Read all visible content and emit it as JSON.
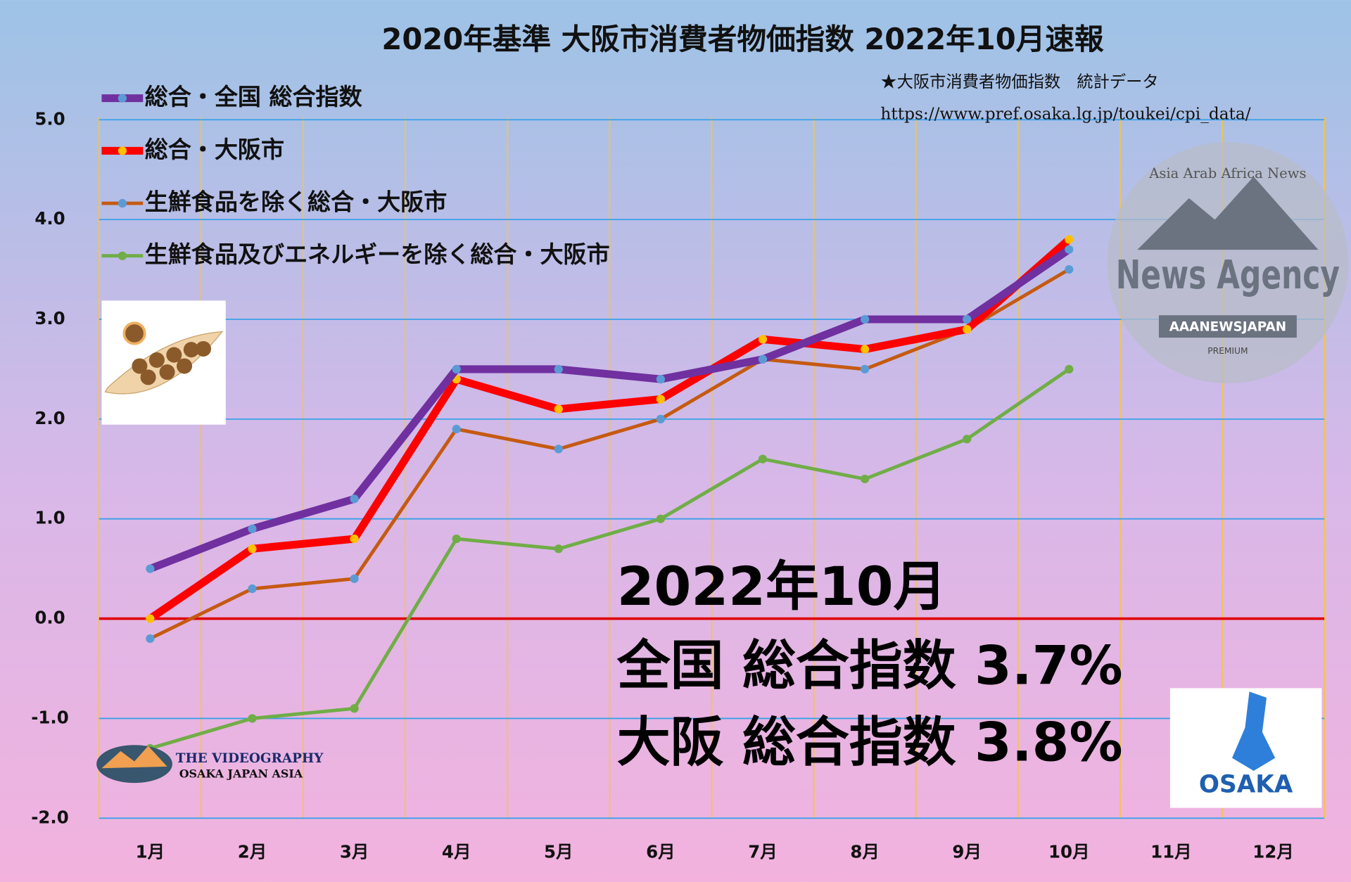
{
  "chart_data": {
    "type": "line",
    "title": "2020年基準 大阪市消費者物価指数 2022年10月速報",
    "source_lines": [
      "★大阪市消費者物価指数　統計データ",
      "https://www.pref.osaka.lg.jp/toukei/cpi_data/"
    ],
    "categories": [
      "1月",
      "2月",
      "3月",
      "4月",
      "5月",
      "6月",
      "7月",
      "8月",
      "9月",
      "10月",
      "11月",
      "12月"
    ],
    "series": [
      {
        "name": "総合・全国 総合指数",
        "color": "#7030a0",
        "marker_color": "#5b9bd5",
        "values": [
          0.5,
          0.9,
          1.2,
          2.5,
          2.5,
          2.4,
          2.6,
          3.0,
          3.0,
          3.7,
          null,
          null
        ]
      },
      {
        "name": "総合・大阪市",
        "color": "#ff0000",
        "marker_color": "#ffc000",
        "values": [
          0.0,
          0.7,
          0.8,
          2.4,
          2.1,
          2.2,
          2.8,
          2.7,
          2.9,
          3.8,
          null,
          null
        ]
      },
      {
        "name": "生鮮食品を除く総合・大阪市",
        "color": "#c55a11",
        "marker_color": "#5b9bd5",
        "values": [
          -0.2,
          0.3,
          0.4,
          1.9,
          1.7,
          2.0,
          2.6,
          2.5,
          2.9,
          3.5,
          null,
          null
        ]
      },
      {
        "name": "生鮮食品及びエネルギーを除く総合・大阪市",
        "color": "#70ad47",
        "marker_color": "#70ad47",
        "values": [
          -1.3,
          -1.0,
          -0.9,
          0.8,
          0.7,
          1.0,
          1.6,
          1.4,
          1.8,
          2.5,
          null,
          null
        ]
      }
    ],
    "ylim": [
      -2,
      5
    ],
    "yticks": [
      {
        "value": -2,
        "label": "-2.0"
      },
      {
        "value": -1,
        "label": "-1.0"
      },
      {
        "value": 0,
        "label": "0.0"
      },
      {
        "value": 1,
        "label": "1.0"
      },
      {
        "value": 2,
        "label": "2.0"
      },
      {
        "value": 3,
        "label": "3.0"
      },
      {
        "value": 4,
        "label": "4.0"
      },
      {
        "value": 5,
        "label": "5.0"
      }
    ],
    "grid": true,
    "zero_line_color": "#e00000",
    "annotations": [
      "2022年10月",
      "全国 総合指数 3.7%",
      "大阪 総合指数 3.8%"
    ],
    "logos": {
      "videography": [
        "THE VIDEOGRAPHY",
        "OSAKA JAPAN ASIA"
      ],
      "agency": [
        "Asia Arab Africa News",
        "News Agency",
        "AAANEWSJAPAN",
        "PREMIUM"
      ],
      "osaka": "OSAKA"
    }
  }
}
